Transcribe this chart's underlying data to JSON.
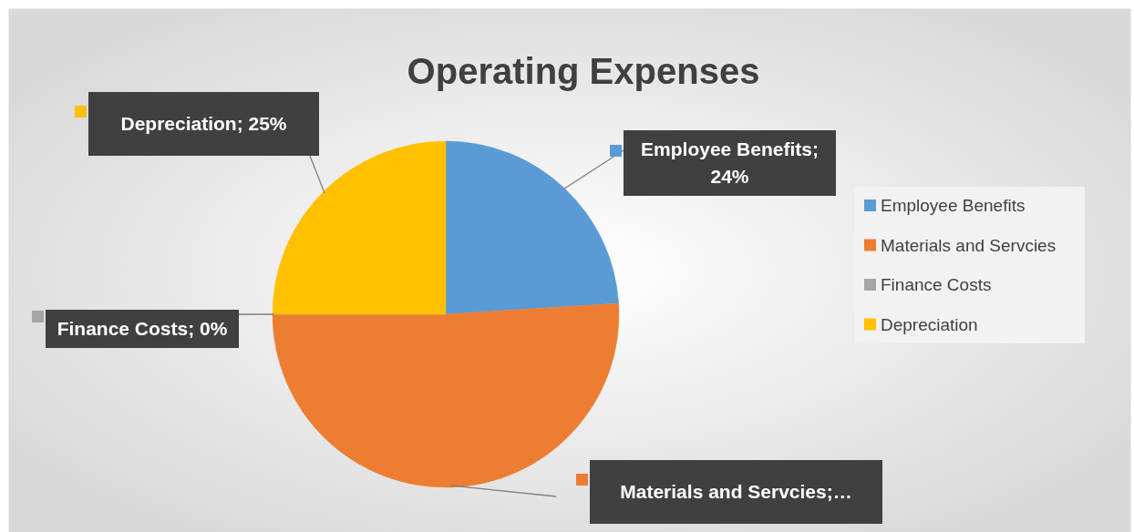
{
  "chart_data": {
    "type": "pie",
    "title": "Operating Expenses",
    "categories": [
      "Employee Benefits",
      "Materials and Servcies",
      "Finance Costs",
      "Depreciation"
    ],
    "values": [
      24,
      51,
      0,
      25
    ],
    "colors": [
      "#5b9bd5",
      "#ed7d31",
      "#a5a5a5",
      "#ffc000"
    ],
    "value_labels": [
      "Employee Benefits; 24%",
      "Materials and Servcies;…",
      "Finance Costs; 0%",
      "Depreciation; 25%"
    ],
    "legend": "right"
  }
}
